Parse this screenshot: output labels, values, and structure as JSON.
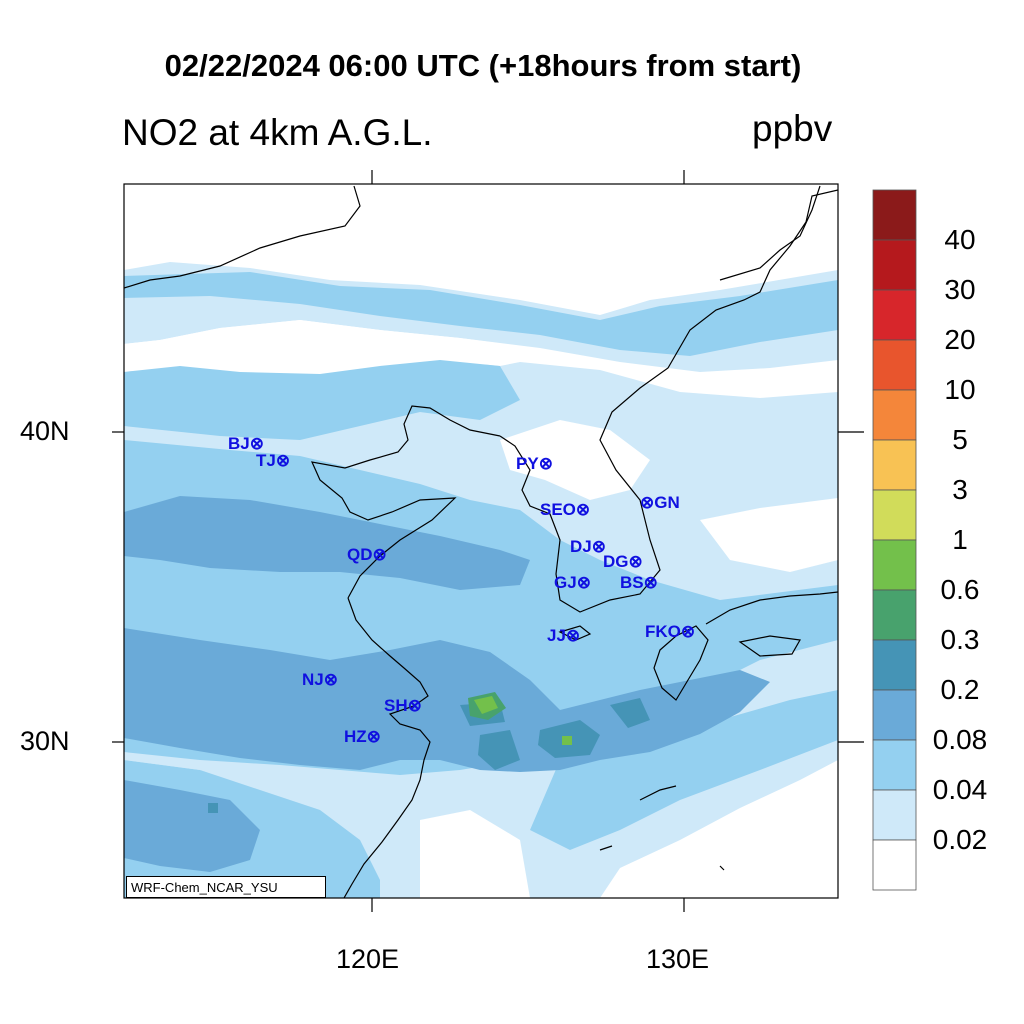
{
  "header": {
    "title": "02/22/2024 06:00 UTC (+18hours from start)",
    "variable": "NO2 at 4km A.G.L.",
    "units": "ppbv"
  },
  "axes": {
    "lat_labels": [
      "40N",
      "30N"
    ],
    "lon_labels": [
      "120E",
      "130E"
    ]
  },
  "credit": "WRF-Chem_NCAR_YSU",
  "cities": [
    {
      "code": "BJ"
    },
    {
      "code": "TJ"
    },
    {
      "code": "PY"
    },
    {
      "code": "SEO"
    },
    {
      "code": "GN"
    },
    {
      "code": "QD"
    },
    {
      "code": "DJ"
    },
    {
      "code": "DG"
    },
    {
      "code": "GJ"
    },
    {
      "code": "BS"
    },
    {
      "code": "JJ"
    },
    {
      "code": "FKO"
    },
    {
      "code": "NJ"
    },
    {
      "code": "SH"
    },
    {
      "code": "HZ"
    }
  ],
  "colorbar": {
    "labels": [
      "40",
      "30",
      "20",
      "10",
      "5",
      "3",
      "1",
      "0.6",
      "0.3",
      "0.2",
      "0.08",
      "0.04",
      "0.02"
    ],
    "colors": [
      "#8b1a1a",
      "#b5191d",
      "#d7262b",
      "#e8552d",
      "#f4863a",
      "#f8c254",
      "#d1dc5a",
      "#73c04b",
      "#48a26d",
      "#4594b6",
      "#6aaad8",
      "#94d0f0",
      "#cfe9f9",
      "#ffffff"
    ]
  },
  "field_colors": {
    "clean": "#ffffff",
    "c002": "#cfe9f9",
    "c004": "#94d0f0",
    "c008": "#6aaad8",
    "c02": "#4594b6",
    "c03": "#48a26d",
    "c06": "#73c04b"
  }
}
